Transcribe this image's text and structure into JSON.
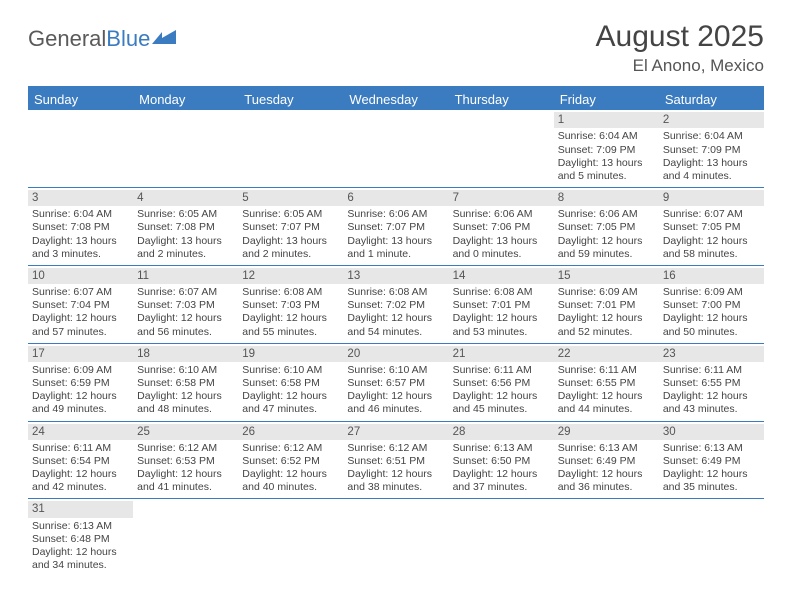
{
  "logo": {
    "text1": "General",
    "text2": "Blue"
  },
  "title": "August 2025",
  "location": "El Anono, Mexico",
  "colors": {
    "header_bg": "#3b7bbf",
    "header_text": "#ffffff",
    "daynum_bg": "#e7e7e7",
    "border": "#3b7bbf",
    "body_text": "#444444"
  },
  "day_labels": [
    "Sunday",
    "Monday",
    "Tuesday",
    "Wednesday",
    "Thursday",
    "Friday",
    "Saturday"
  ],
  "weeks": [
    [
      null,
      null,
      null,
      null,
      null,
      {
        "n": "1",
        "sr": "Sunrise: 6:04 AM",
        "ss": "Sunset: 7:09 PM",
        "dl1": "Daylight: 13 hours",
        "dl2": "and 5 minutes."
      },
      {
        "n": "2",
        "sr": "Sunrise: 6:04 AM",
        "ss": "Sunset: 7:09 PM",
        "dl1": "Daylight: 13 hours",
        "dl2": "and 4 minutes."
      }
    ],
    [
      {
        "n": "3",
        "sr": "Sunrise: 6:04 AM",
        "ss": "Sunset: 7:08 PM",
        "dl1": "Daylight: 13 hours",
        "dl2": "and 3 minutes."
      },
      {
        "n": "4",
        "sr": "Sunrise: 6:05 AM",
        "ss": "Sunset: 7:08 PM",
        "dl1": "Daylight: 13 hours",
        "dl2": "and 2 minutes."
      },
      {
        "n": "5",
        "sr": "Sunrise: 6:05 AM",
        "ss": "Sunset: 7:07 PM",
        "dl1": "Daylight: 13 hours",
        "dl2": "and 2 minutes."
      },
      {
        "n": "6",
        "sr": "Sunrise: 6:06 AM",
        "ss": "Sunset: 7:07 PM",
        "dl1": "Daylight: 13 hours",
        "dl2": "and 1 minute."
      },
      {
        "n": "7",
        "sr": "Sunrise: 6:06 AM",
        "ss": "Sunset: 7:06 PM",
        "dl1": "Daylight: 13 hours",
        "dl2": "and 0 minutes."
      },
      {
        "n": "8",
        "sr": "Sunrise: 6:06 AM",
        "ss": "Sunset: 7:05 PM",
        "dl1": "Daylight: 12 hours",
        "dl2": "and 59 minutes."
      },
      {
        "n": "9",
        "sr": "Sunrise: 6:07 AM",
        "ss": "Sunset: 7:05 PM",
        "dl1": "Daylight: 12 hours",
        "dl2": "and 58 minutes."
      }
    ],
    [
      {
        "n": "10",
        "sr": "Sunrise: 6:07 AM",
        "ss": "Sunset: 7:04 PM",
        "dl1": "Daylight: 12 hours",
        "dl2": "and 57 minutes."
      },
      {
        "n": "11",
        "sr": "Sunrise: 6:07 AM",
        "ss": "Sunset: 7:03 PM",
        "dl1": "Daylight: 12 hours",
        "dl2": "and 56 minutes."
      },
      {
        "n": "12",
        "sr": "Sunrise: 6:08 AM",
        "ss": "Sunset: 7:03 PM",
        "dl1": "Daylight: 12 hours",
        "dl2": "and 55 minutes."
      },
      {
        "n": "13",
        "sr": "Sunrise: 6:08 AM",
        "ss": "Sunset: 7:02 PM",
        "dl1": "Daylight: 12 hours",
        "dl2": "and 54 minutes."
      },
      {
        "n": "14",
        "sr": "Sunrise: 6:08 AM",
        "ss": "Sunset: 7:01 PM",
        "dl1": "Daylight: 12 hours",
        "dl2": "and 53 minutes."
      },
      {
        "n": "15",
        "sr": "Sunrise: 6:09 AM",
        "ss": "Sunset: 7:01 PM",
        "dl1": "Daylight: 12 hours",
        "dl2": "and 52 minutes."
      },
      {
        "n": "16",
        "sr": "Sunrise: 6:09 AM",
        "ss": "Sunset: 7:00 PM",
        "dl1": "Daylight: 12 hours",
        "dl2": "and 50 minutes."
      }
    ],
    [
      {
        "n": "17",
        "sr": "Sunrise: 6:09 AM",
        "ss": "Sunset: 6:59 PM",
        "dl1": "Daylight: 12 hours",
        "dl2": "and 49 minutes."
      },
      {
        "n": "18",
        "sr": "Sunrise: 6:10 AM",
        "ss": "Sunset: 6:58 PM",
        "dl1": "Daylight: 12 hours",
        "dl2": "and 48 minutes."
      },
      {
        "n": "19",
        "sr": "Sunrise: 6:10 AM",
        "ss": "Sunset: 6:58 PM",
        "dl1": "Daylight: 12 hours",
        "dl2": "and 47 minutes."
      },
      {
        "n": "20",
        "sr": "Sunrise: 6:10 AM",
        "ss": "Sunset: 6:57 PM",
        "dl1": "Daylight: 12 hours",
        "dl2": "and 46 minutes."
      },
      {
        "n": "21",
        "sr": "Sunrise: 6:11 AM",
        "ss": "Sunset: 6:56 PM",
        "dl1": "Daylight: 12 hours",
        "dl2": "and 45 minutes."
      },
      {
        "n": "22",
        "sr": "Sunrise: 6:11 AM",
        "ss": "Sunset: 6:55 PM",
        "dl1": "Daylight: 12 hours",
        "dl2": "and 44 minutes."
      },
      {
        "n": "23",
        "sr": "Sunrise: 6:11 AM",
        "ss": "Sunset: 6:55 PM",
        "dl1": "Daylight: 12 hours",
        "dl2": "and 43 minutes."
      }
    ],
    [
      {
        "n": "24",
        "sr": "Sunrise: 6:11 AM",
        "ss": "Sunset: 6:54 PM",
        "dl1": "Daylight: 12 hours",
        "dl2": "and 42 minutes."
      },
      {
        "n": "25",
        "sr": "Sunrise: 6:12 AM",
        "ss": "Sunset: 6:53 PM",
        "dl1": "Daylight: 12 hours",
        "dl2": "and 41 minutes."
      },
      {
        "n": "26",
        "sr": "Sunrise: 6:12 AM",
        "ss": "Sunset: 6:52 PM",
        "dl1": "Daylight: 12 hours",
        "dl2": "and 40 minutes."
      },
      {
        "n": "27",
        "sr": "Sunrise: 6:12 AM",
        "ss": "Sunset: 6:51 PM",
        "dl1": "Daylight: 12 hours",
        "dl2": "and 38 minutes."
      },
      {
        "n": "28",
        "sr": "Sunrise: 6:13 AM",
        "ss": "Sunset: 6:50 PM",
        "dl1": "Daylight: 12 hours",
        "dl2": "and 37 minutes."
      },
      {
        "n": "29",
        "sr": "Sunrise: 6:13 AM",
        "ss": "Sunset: 6:49 PM",
        "dl1": "Daylight: 12 hours",
        "dl2": "and 36 minutes."
      },
      {
        "n": "30",
        "sr": "Sunrise: 6:13 AM",
        "ss": "Sunset: 6:49 PM",
        "dl1": "Daylight: 12 hours",
        "dl2": "and 35 minutes."
      }
    ],
    [
      {
        "n": "31",
        "sr": "Sunrise: 6:13 AM",
        "ss": "Sunset: 6:48 PM",
        "dl1": "Daylight: 12 hours",
        "dl2": "and 34 minutes."
      },
      null,
      null,
      null,
      null,
      null,
      null
    ]
  ]
}
